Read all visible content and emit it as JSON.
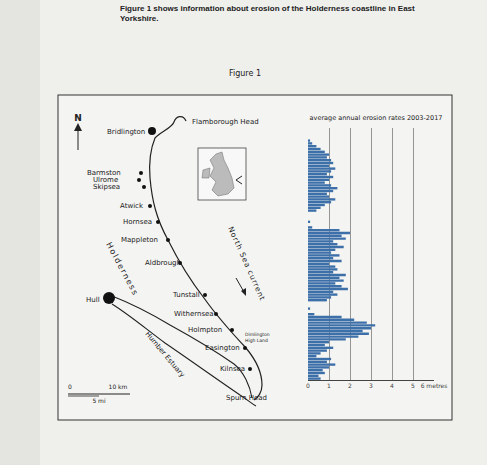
{
  "header": {
    "intro": "Figure 1 shows information about erosion of the Holderness coastline in East Yorkshire.",
    "figure": "Figure 1"
  },
  "map": {
    "north": "N",
    "headland": "Flamborough Head",
    "places": [
      "Bridlington",
      "Barmston",
      "Ulrome",
      "Skipsea",
      "Atwick",
      "Hornsea",
      "Mappleton",
      "Aldbrough",
      "Tunstall",
      "Withernsea",
      "Holmpton",
      "Easington",
      "Kilnsea"
    ],
    "city": "Hull",
    "region": "Holderness",
    "current": "North Sea current",
    "estuary": "Humber Estuary",
    "spit": "Spurn Head",
    "high_land": [
      "Dimlington",
      "High Land"
    ],
    "scale": {
      "start": "0",
      "km": "10 km",
      "mi": "5 mi"
    }
  },
  "chart_data": {
    "type": "bar",
    "title": "average annual erosion rates 2003-2017",
    "orientation": "horizontal",
    "color": "#3d6fa8",
    "grid": true,
    "tick_labels": "x",
    "xlim": [
      0,
      6
    ],
    "xticks": [
      0,
      1,
      2,
      3,
      4,
      5,
      {
        "value": 6,
        "label": "6 metres"
      }
    ],
    "categories": [
      null,
      null,
      null,
      null,
      null,
      null,
      null,
      null,
      null,
      null,
      null,
      null,
      null,
      null,
      null,
      null,
      null,
      null,
      null,
      null,
      null,
      null,
      null,
      null,
      null,
      null,
      null,
      null,
      null,
      null,
      null,
      null,
      null,
      null,
      null,
      null,
      null,
      null,
      null,
      null,
      null,
      null,
      null,
      null,
      null,
      null,
      null,
      null,
      null,
      null,
      null,
      null,
      null,
      null,
      null,
      null,
      null,
      null,
      null,
      null,
      null,
      null,
      null,
      null,
      null,
      null,
      null,
      null,
      null,
      null,
      null,
      null,
      null,
      null,
      null,
      null,
      null,
      null,
      null,
      null,
      null,
      null,
      null,
      null,
      null,
      null,
      null,
      null,
      null,
      null
    ],
    "values": [
      0,
      0,
      0,
      0,
      0.1,
      0.2,
      0.4,
      0.6,
      0.8,
      1.0,
      0.9,
      1.1,
      1.2,
      1.0,
      1.3,
      1.1,
      0.9,
      1.2,
      1.0,
      0.8,
      1.1,
      1.4,
      1.2,
      0.9,
      1.0,
      1.3,
      1.1,
      0.8,
      0.6,
      0.4,
      0,
      0,
      0,
      0.1,
      0,
      0.2,
      1.5,
      2.0,
      1.6,
      1.8,
      1.2,
      1.4,
      1.7,
      1.3,
      1.1,
      1.5,
      1.2,
      1.6,
      1.0,
      1.3,
      1.4,
      1.2,
      1.8,
      1.5,
      1.7,
      1.3,
      1.6,
      1.9,
      1.2,
      1.4,
      1.1,
      0.9,
      0,
      0,
      0.1,
      0,
      0.3,
      1.6,
      2.2,
      2.8,
      3.2,
      3.0,
      2.6,
      2.9,
      2.4,
      1.8,
      1.0,
      0.8,
      1.2,
      0.9,
      0.6,
      0.4,
      1.1,
      0.9,
      1.3,
      1.0,
      0.7,
      0.8,
      0.5,
      0.6
    ]
  }
}
